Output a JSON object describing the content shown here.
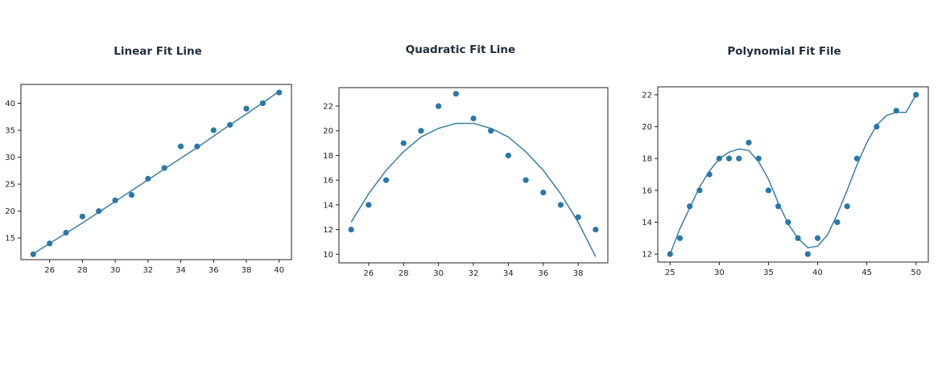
{
  "charts": [
    {
      "title": "Linear Fit Line"
    },
    {
      "title": "Quadratic Fit Line"
    },
    {
      "title": "Polynomial Fit File"
    }
  ],
  "style": {
    "point_color": "#2878a8",
    "line_color": "#3a7fa3",
    "frame_color": "#222222"
  },
  "chart_data": [
    {
      "type": "scatter",
      "title": "Linear Fit Line",
      "xlabel": "",
      "ylabel": "",
      "xlim": [
        24.25,
        40.75
      ],
      "ylim": [
        11,
        43.5
      ],
      "xticks": [
        26,
        28,
        30,
        32,
        34,
        36,
        38,
        40
      ],
      "yticks": [
        15,
        20,
        25,
        30,
        35,
        40
      ],
      "points": {
        "x": [
          25,
          26,
          27,
          28,
          29,
          30,
          31,
          32,
          33,
          34,
          35,
          36,
          37,
          38,
          39,
          40
        ],
        "y": [
          12,
          14,
          16,
          19,
          20,
          22,
          23,
          26,
          28,
          32,
          32,
          35,
          36,
          39,
          40,
          42
        ]
      },
      "fit_line": {
        "x": [
          25,
          26,
          27,
          28,
          29,
          30,
          31,
          32,
          33,
          34,
          35,
          36,
          37,
          38,
          39,
          40
        ],
        "y": [
          12.1,
          14.0,
          15.9,
          17.8,
          19.8,
          21.8,
          23.8,
          25.8,
          27.8,
          29.8,
          31.8,
          33.9,
          36.0,
          38.0,
          40.1,
          42.2
        ]
      },
      "grid": false
    },
    {
      "type": "scatter",
      "title": "Quadratic Fit Line",
      "xlabel": "",
      "ylabel": "",
      "xlim": [
        24.3,
        39.7
      ],
      "ylim": [
        9.3,
        23.5
      ],
      "xticks": [
        26,
        28,
        30,
        32,
        34,
        36,
        38
      ],
      "yticks": [
        10,
        12,
        14,
        16,
        18,
        20,
        22
      ],
      "points": {
        "x": [
          25,
          26,
          27,
          28,
          29,
          30,
          31,
          32,
          33,
          34,
          35,
          36,
          37,
          38,
          39
        ],
        "y": [
          12,
          14,
          16,
          19,
          20,
          22,
          23,
          21,
          20,
          18,
          16,
          15,
          14,
          13,
          12
        ]
      },
      "fit_line": {
        "x": [
          25,
          26,
          27,
          28,
          29,
          30,
          31,
          32,
          33,
          34,
          35,
          36,
          37,
          38,
          39
        ],
        "y": [
          12.6,
          14.9,
          16.8,
          18.3,
          19.5,
          20.2,
          20.6,
          20.6,
          20.2,
          19.5,
          18.3,
          16.8,
          14.9,
          12.6,
          9.8
        ]
      },
      "grid": false
    },
    {
      "type": "scatter",
      "title": "Polynomial Fit File",
      "xlabel": "",
      "ylabel": "",
      "xlim": [
        23.75,
        51.25
      ],
      "ylim": [
        11.5,
        22.5
      ],
      "xticks": [
        25,
        30,
        35,
        40,
        45,
        50
      ],
      "yticks": [
        12,
        14,
        16,
        18,
        20,
        22
      ],
      "points": {
        "x": [
          25,
          26,
          27,
          28,
          29,
          30,
          31,
          32,
          33,
          34,
          35,
          36,
          37,
          38,
          39,
          40,
          42,
          43,
          44,
          46,
          48,
          50
        ],
        "y": [
          12,
          13,
          15,
          16,
          17,
          18,
          18,
          18,
          19,
          18,
          16,
          15,
          14,
          13,
          12,
          13,
          14,
          15,
          18,
          20,
          21,
          22
        ]
      },
      "fit_line": {
        "x": [
          25,
          26,
          27,
          28,
          29,
          30,
          31,
          32,
          33,
          34,
          35,
          36,
          37,
          38,
          39,
          40,
          41,
          42,
          43,
          44,
          45,
          46,
          47,
          48,
          49,
          50
        ],
        "y": [
          12.0,
          13.6,
          14.9,
          16.2,
          17.2,
          18.0,
          18.4,
          18.6,
          18.5,
          17.8,
          16.7,
          15.2,
          13.9,
          13.0,
          12.4,
          12.5,
          13.2,
          14.5,
          16.0,
          17.6,
          19.0,
          20.1,
          20.7,
          20.9,
          20.9,
          22.0
        ]
      },
      "grid": false
    }
  ]
}
